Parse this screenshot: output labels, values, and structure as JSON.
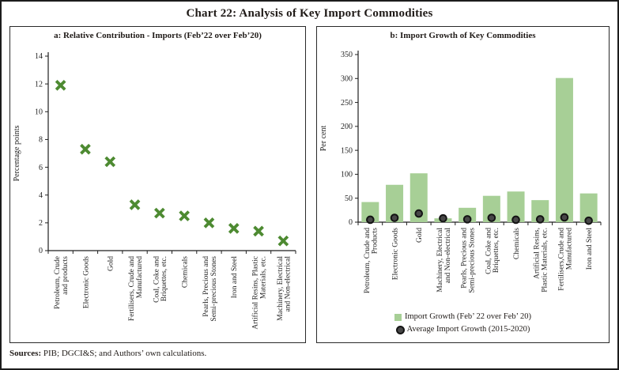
{
  "figure": {
    "title": "Chart 22: Analysis of Key Import Commodities",
    "sources_label": "Sources:",
    "sources_text": "PIB; DGCI&S; and Authors’ own calculations."
  },
  "chart_data": [
    {
      "type": "scatter",
      "panel": "a",
      "title": "a: Relative Contribution - Imports (Feb’22 over Feb’20)",
      "ylabel": "Percentage points",
      "ylim": [
        0,
        14
      ],
      "ytick_step": 2,
      "grid": false,
      "marker": "x",
      "marker_color": "#4d8a31",
      "categories": [
        "Petroleum, Crude\nand products",
        "Electronic Goods",
        "Gold",
        "Fertilisers, Crude and\nManufactured",
        "Coal, Coke and\nBriquettes, etc.",
        "Chemicals",
        "Pearls, Precious and\nSemi-precious Stones",
        "Iron and Steel",
        "Artificial Resins, Plastic\nMaterials, etc.",
        "Machinery, Electrical\nand Non-electrical"
      ],
      "values": [
        11.9,
        7.3,
        6.4,
        3.3,
        2.7,
        2.5,
        2.0,
        1.6,
        1.4,
        0.7
      ]
    },
    {
      "type": "bar",
      "panel": "b",
      "title": "b: Import Growth of Key Commodities",
      "ylabel": "Per cent",
      "ylim": [
        0,
        350
      ],
      "ytick_step": 50,
      "grid": false,
      "legend_position": "bottom",
      "categories": [
        "Petroleum, Crude and\nProducts",
        "Electronic Goods",
        "Gold",
        "Machinery, Electrical\nand Non-electrical",
        "Pearls, Precious and\nSemi-precious Stones",
        "Coal, Coke and\nBriquettes, etc.",
        "Chemicals",
        "Artificial Resins,\nPlastic Materials, etc.",
        "Fertilisers,Crude and\nManufactured",
        "Iron and Steel"
      ],
      "series": [
        {
          "name": "Import Growth (Feb’ 22 over Feb’ 20)",
          "type": "bar",
          "color": "#a7cf96",
          "values": [
            42,
            78,
            102,
            8,
            30,
            55,
            64,
            46,
            301,
            60
          ]
        },
        {
          "name": "Average Import Growth (2015-2020)",
          "type": "dot",
          "color": "#474747",
          "values": [
            5,
            9,
            18,
            8,
            6,
            9,
            5,
            6,
            10,
            3
          ]
        }
      ]
    }
  ]
}
